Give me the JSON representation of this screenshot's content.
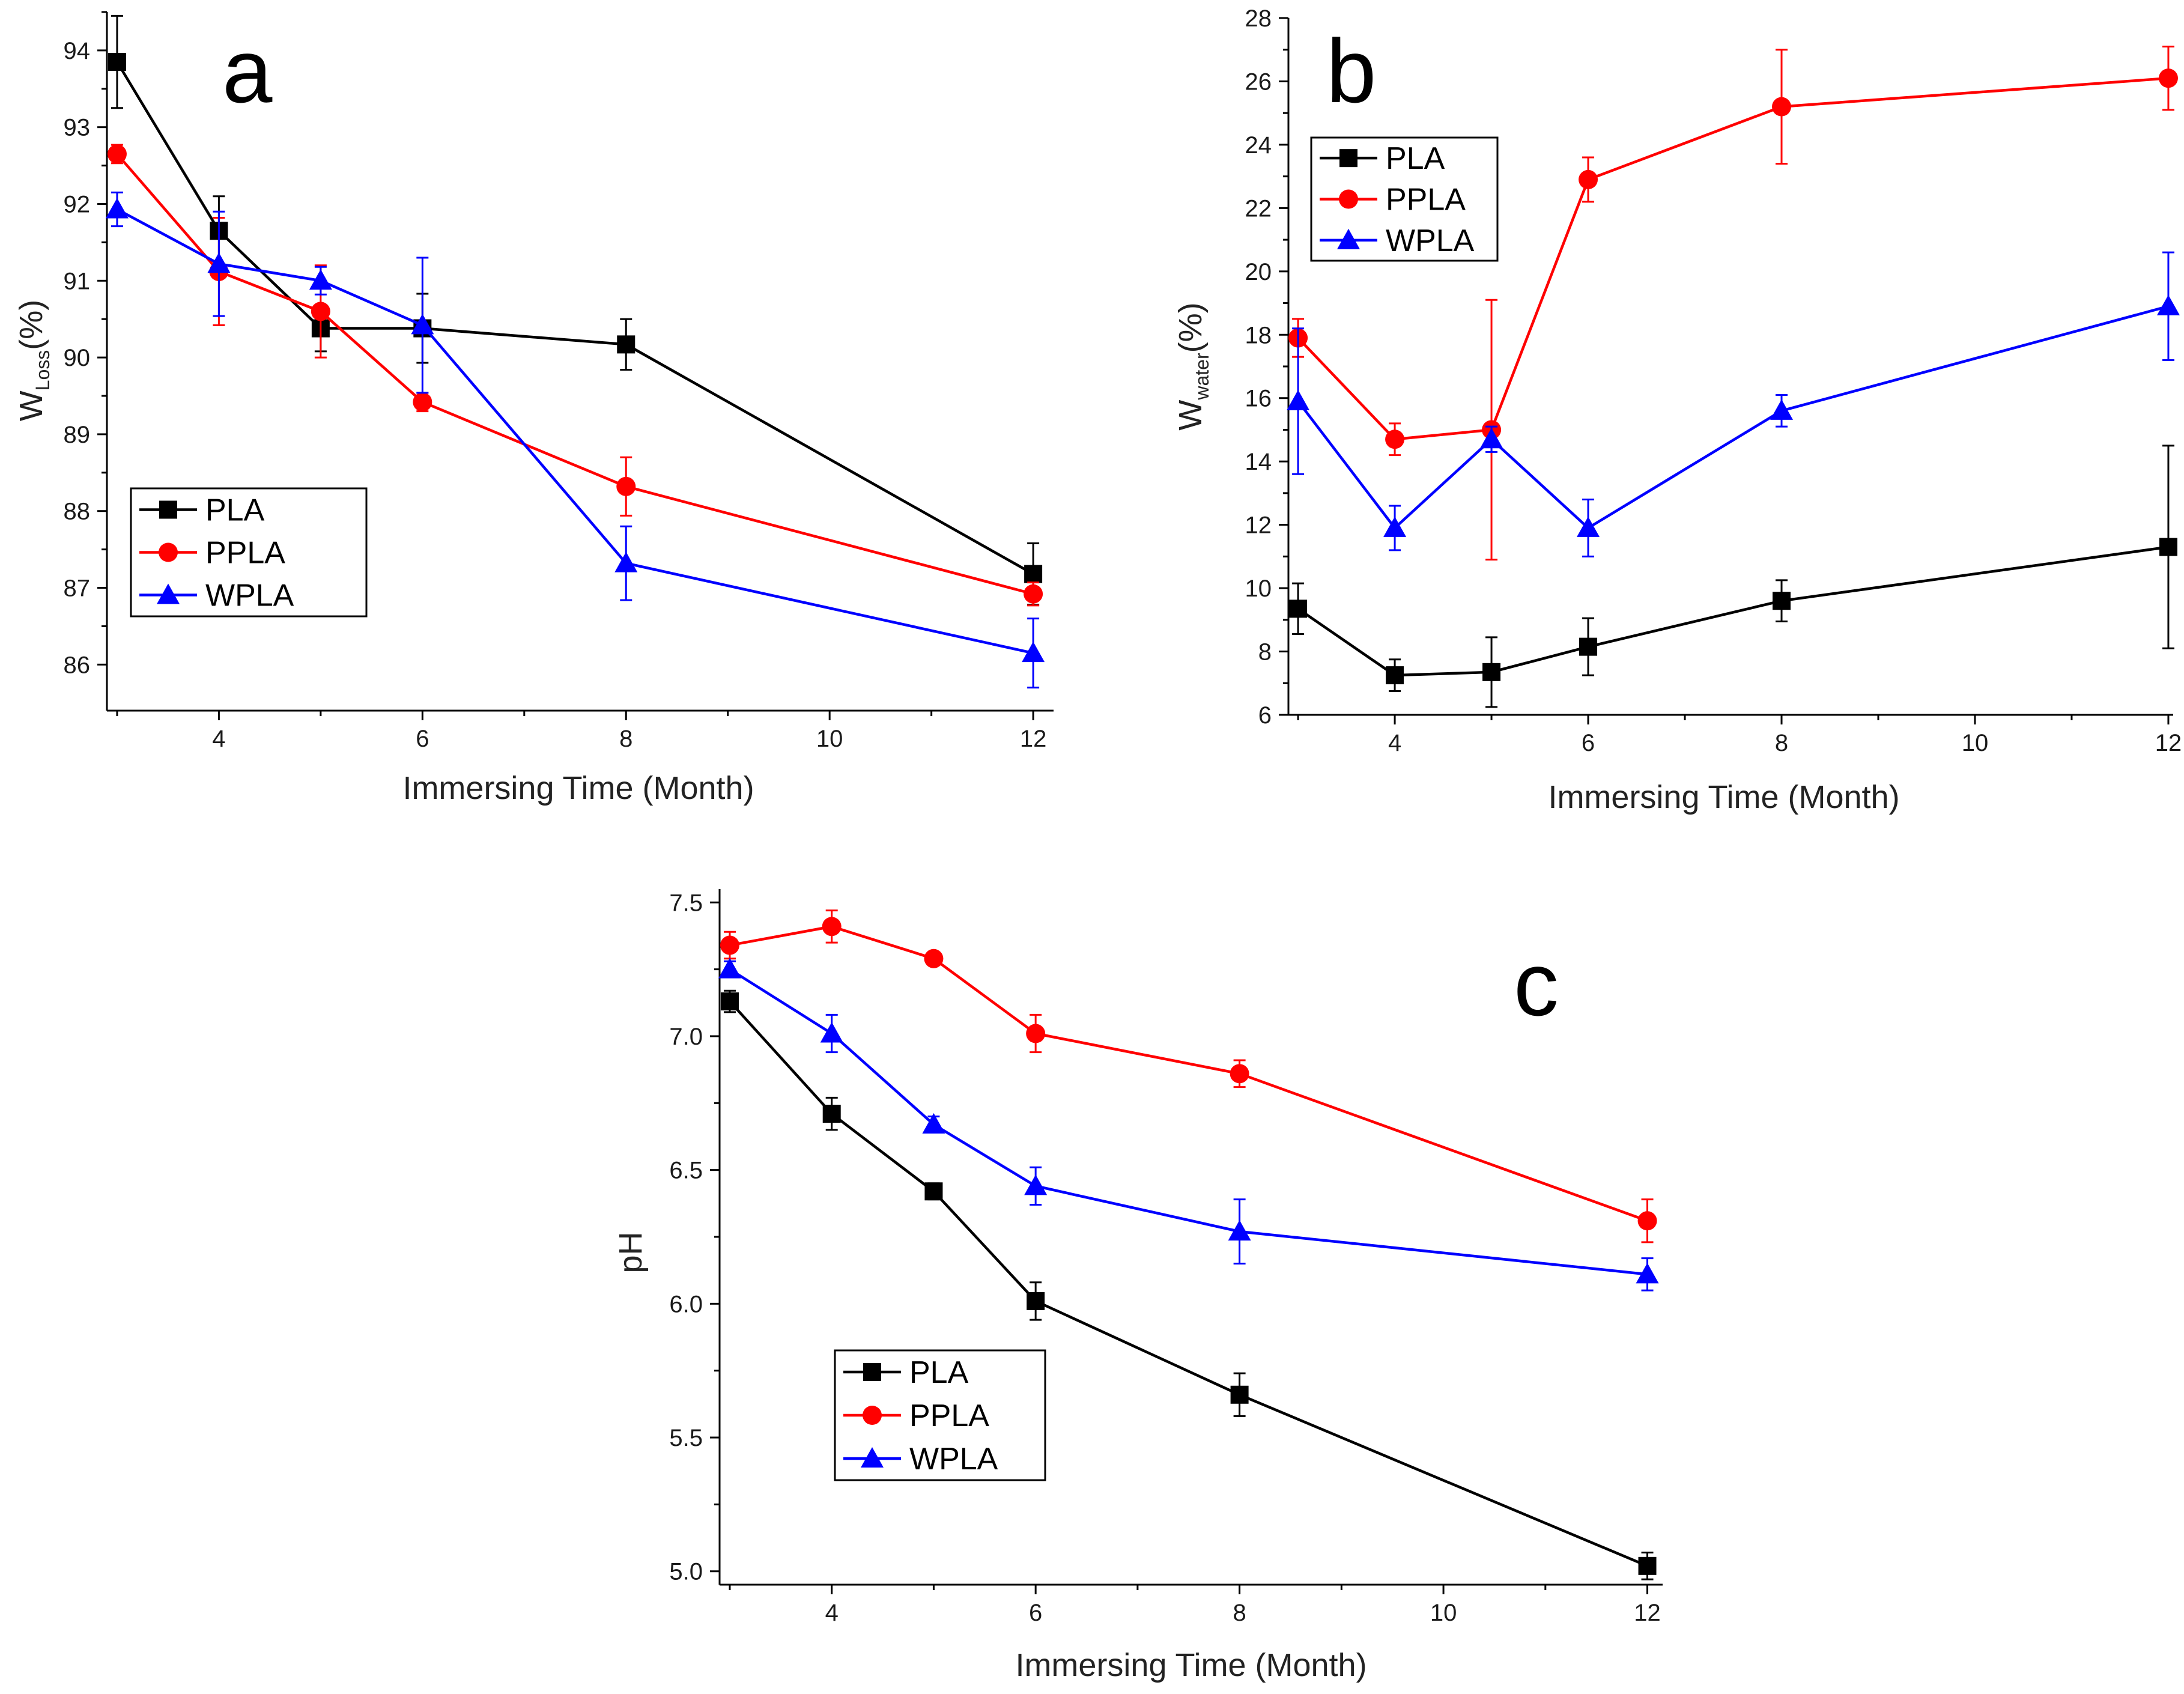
{
  "figure": {
    "panels": [
      "a",
      "b",
      "c"
    ]
  },
  "chart_data": [
    {
      "id": "a",
      "type": "line",
      "panel_label": "a",
      "title": "",
      "xlabel": "Immersing Time (Month)",
      "ylabel_main": "W",
      "ylabel_sub": "Loss",
      "ylabel_tail": "(%)",
      "xlim": [
        2.9,
        12.2
      ],
      "ylim": [
        85.4,
        94.5
      ],
      "xticks": [
        4,
        6,
        8,
        10,
        12
      ],
      "yticks": [
        86,
        87,
        88,
        89,
        90,
        91,
        92,
        93,
        94
      ],
      "grid": false,
      "legend_position": "lower-left",
      "series": [
        {
          "name": "PLA",
          "color": "#000000",
          "marker": "square",
          "x": [
            3,
            4,
            5,
            6,
            8,
            12
          ],
          "y": [
            93.85,
            91.65,
            90.38,
            90.38,
            90.17,
            87.18
          ],
          "err": [
            0.6,
            0.45,
            0.3,
            0.45,
            0.33,
            0.4
          ]
        },
        {
          "name": "PPLA",
          "color": "#ff0000",
          "marker": "circle",
          "x": [
            3,
            4,
            5,
            6,
            8,
            12
          ],
          "y": [
            92.65,
            91.12,
            90.6,
            89.42,
            88.32,
            86.92
          ],
          "err": [
            0.12,
            0.7,
            0.6,
            0.12,
            0.38,
            0.15
          ]
        },
        {
          "name": "WPLA",
          "color": "#0000ff",
          "marker": "triangle",
          "x": [
            3,
            4,
            5,
            6,
            8,
            12
          ],
          "y": [
            91.93,
            91.22,
            91.0,
            90.42,
            87.32,
            86.15
          ],
          "err": [
            0.22,
            0.68,
            0.18,
            0.88,
            0.48,
            0.45
          ]
        }
      ]
    },
    {
      "id": "b",
      "type": "line",
      "panel_label": "b",
      "title": "",
      "xlabel": "Immersing Time (Month)",
      "ylabel_main": "W",
      "ylabel_sub": "water",
      "ylabel_tail": "(%)",
      "xlim": [
        2.9,
        12.05
      ],
      "ylim": [
        6,
        28
      ],
      "xticks": [
        4,
        6,
        8,
        10,
        12
      ],
      "yticks": [
        6,
        8,
        10,
        12,
        14,
        16,
        18,
        20,
        22,
        24,
        26,
        28
      ],
      "grid": false,
      "legend_position": "top-left",
      "series": [
        {
          "name": "PLA",
          "color": "#000000",
          "marker": "square",
          "x": [
            3,
            4,
            5,
            6,
            8,
            12
          ],
          "y": [
            9.35,
            7.25,
            7.35,
            8.15,
            9.6,
            11.3
          ],
          "err": [
            0.8,
            0.5,
            1.1,
            0.9,
            0.65,
            3.2
          ]
        },
        {
          "name": "PPLA",
          "color": "#ff0000",
          "marker": "circle",
          "x": [
            3,
            4,
            5,
            6,
            8,
            12
          ],
          "y": [
            17.9,
            14.7,
            15.0,
            22.9,
            25.2,
            26.1
          ],
          "err": [
            0.6,
            0.5,
            4.1,
            0.7,
            1.8,
            1.0
          ]
        },
        {
          "name": "WPLA",
          "color": "#0000ff",
          "marker": "triangle",
          "x": [
            3,
            4,
            5,
            6,
            8,
            12
          ],
          "y": [
            15.9,
            11.9,
            14.7,
            11.9,
            15.6,
            18.9
          ],
          "err": [
            2.3,
            0.7,
            0.4,
            0.9,
            0.5,
            1.7
          ]
        }
      ]
    },
    {
      "id": "c",
      "type": "line",
      "panel_label": "c",
      "title": "",
      "xlabel": "Immersing Time (Month)",
      "ylabel_main": "pH",
      "ylabel_sub": "",
      "ylabel_tail": "",
      "xlim": [
        2.9,
        12.15
      ],
      "ylim": [
        4.95,
        7.55
      ],
      "xticks": [
        4,
        6,
        8,
        10,
        12
      ],
      "yticks": [
        5.0,
        5.5,
        6.0,
        6.5,
        7.0,
        7.5
      ],
      "ytick_labels": [
        "5.0",
        "5.5",
        "6.0",
        "6.5",
        "7.0",
        "7.5"
      ],
      "grid": false,
      "legend_position": "lower-left",
      "series": [
        {
          "name": "PLA",
          "color": "#000000",
          "marker": "square",
          "x": [
            3,
            4,
            5,
            6,
            8,
            12
          ],
          "y": [
            7.13,
            6.71,
            6.42,
            6.01,
            5.66,
            5.02
          ],
          "err": [
            0.04,
            0.06,
            0.03,
            0.07,
            0.08,
            0.05
          ]
        },
        {
          "name": "PPLA",
          "color": "#ff0000",
          "marker": "circle",
          "x": [
            3,
            4,
            5,
            6,
            8,
            12
          ],
          "y": [
            7.34,
            7.41,
            7.29,
            7.01,
            6.86,
            6.31
          ],
          "err": [
            0.05,
            0.06,
            0.02,
            0.07,
            0.05,
            0.08
          ]
        },
        {
          "name": "WPLA",
          "color": "#0000ff",
          "marker": "triangle",
          "x": [
            3,
            4,
            5,
            6,
            8,
            12
          ],
          "y": [
            7.25,
            7.01,
            6.67,
            6.44,
            6.27,
            6.11
          ],
          "err": [
            0.03,
            0.07,
            0.03,
            0.07,
            0.12,
            0.06
          ]
        }
      ]
    }
  ]
}
